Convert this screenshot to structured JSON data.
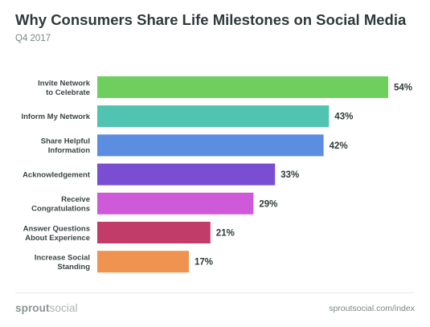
{
  "title": "Why Consumers Share Life Milestones on Social Media",
  "subtitle": "Q4 2017",
  "brand": {
    "part1": "sprout",
    "part2": "social"
  },
  "source": "sproutsocial.com/index",
  "chart_data": {
    "type": "bar",
    "orientation": "horizontal",
    "value_suffix": "%",
    "xlim": [
      0,
      60
    ],
    "grid": false,
    "legend": "none",
    "categories": [
      [
        "Invite Network",
        "to Celebrate"
      ],
      [
        "Inform My Network"
      ],
      [
        "Share Helpful",
        "Information"
      ],
      [
        "Acknowledgement"
      ],
      [
        "Receive",
        "Congratulations"
      ],
      [
        "Answer Questions",
        "About Experience"
      ],
      [
        "Increase Social",
        "Standing"
      ]
    ],
    "values": [
      54,
      43,
      42,
      33,
      29,
      21,
      17
    ],
    "colors": [
      "#6ecf5f",
      "#50c4b0",
      "#5b8ee0",
      "#7a4ed1",
      "#cf5ad9",
      "#c23c6a",
      "#ee9350"
    ]
  }
}
